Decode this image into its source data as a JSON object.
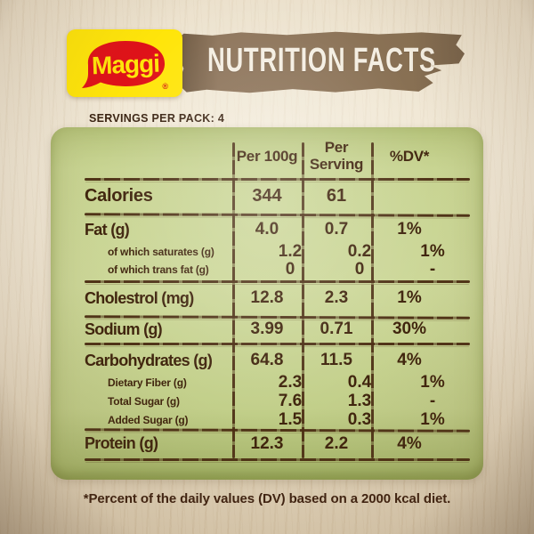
{
  "brand": {
    "logo_text": "Maggi",
    "registered_mark": "®",
    "logo_bg_color": "#ffe50a",
    "logo_blob_color": "#df1219",
    "logo_text_color": "#ffe50a"
  },
  "banner": {
    "title": "NUTRITION FACTS",
    "bg_color": "#8b7256",
    "text_color": "#f4eee2"
  },
  "servings_label": "SERVINGS PER PACK: 4",
  "table": {
    "panel_color": "#c6d190",
    "line_color": "#4a2c12",
    "columns": {
      "col1": "Per 100g",
      "col2_line1": "Per",
      "col2_line2": "Serving",
      "col3": "%DV*"
    },
    "rows": [
      {
        "label": "Calories",
        "per_100g": "344",
        "per_serving": "61",
        "dv": "",
        "level": "main"
      },
      {
        "label": "Fat (g)",
        "per_100g": "4.0",
        "per_serving": "0.7",
        "dv": "1%",
        "level": "main"
      },
      {
        "label": "of which saturates (g)",
        "per_100g": "1.2",
        "per_serving": "0.2",
        "dv": "1%",
        "level": "sub"
      },
      {
        "label": "of which trans fat (g)",
        "per_100g": "0",
        "per_serving": "0",
        "dv": "-",
        "level": "sub"
      },
      {
        "label": "Cholestrol (mg)",
        "per_100g": "12.8",
        "per_serving": "2.3",
        "dv": "1%",
        "level": "main"
      },
      {
        "label": "Sodium (g)",
        "per_100g": "3.99",
        "per_serving": "0.71",
        "dv": "30%",
        "level": "main"
      },
      {
        "label": "Carbohydrates (g)",
        "per_100g": "64.8",
        "per_serving": "11.5",
        "dv": "4%",
        "level": "main"
      },
      {
        "label": "Dietary Fiber (g)",
        "per_100g": "2.3",
        "per_serving": "0.4",
        "dv": "1%",
        "level": "sub"
      },
      {
        "label": "Total Sugar (g)",
        "per_100g": "7.6",
        "per_serving": "1.3",
        "dv": "-",
        "level": "sub"
      },
      {
        "label": "Added Sugar (g)",
        "per_100g": "1.5",
        "per_serving": "0.3",
        "dv": "1%",
        "level": "sub"
      },
      {
        "label": "Protein (g)",
        "per_100g": "12.3",
        "per_serving": "2.2",
        "dv": "4%",
        "level": "main"
      }
    ]
  },
  "footnote": "*Percent of the daily values (DV) based on a 2000 kcal diet."
}
